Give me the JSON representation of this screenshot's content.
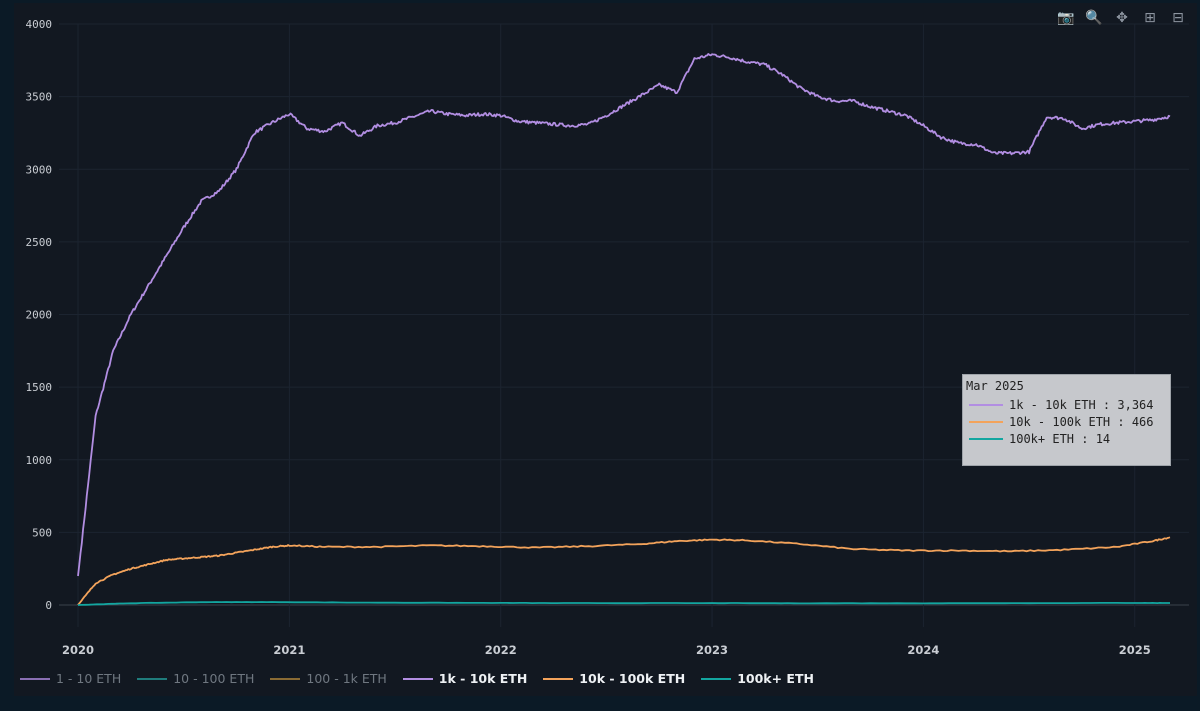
{
  "toolbar": {
    "icons": [
      "camera-icon",
      "zoom-icon",
      "pan-icon",
      "zoom-in-icon",
      "zoom-out-icon"
    ],
    "glyphs": [
      "📷",
      "🔍",
      "✥",
      "⊞",
      "⊟"
    ]
  },
  "hover": {
    "title": "Mar 2025",
    "rows": [
      {
        "text": "1k - 10k ETH : 3,364",
        "color": "#b28ee2"
      },
      {
        "text": "10k - 100k ETH : 466",
        "color": "#f3a35b"
      },
      {
        "text": "100k+ ETH : 14",
        "color": "#13a6a0"
      }
    ]
  },
  "chart_data": {
    "type": "line",
    "ylim": [
      0,
      4000
    ],
    "xlim": [
      "2020-01",
      "2025-03"
    ],
    "y_ticks": [
      0,
      500,
      1000,
      1500,
      2000,
      2500,
      3000,
      3500,
      4000
    ],
    "x_ticks": [
      "2020",
      "2021",
      "2022",
      "2023",
      "2024",
      "2025"
    ],
    "legend": [
      {
        "name": "1 - 10 ETH",
        "color": "#8a6fb3",
        "visible": false
      },
      {
        "name": "10 - 100 ETH",
        "color": "#1f7c7c",
        "visible": false
      },
      {
        "name": "100 - 1k ETH",
        "color": "#8a6b34",
        "visible": false
      },
      {
        "name": "1k - 10k ETH",
        "color": "#b28ee2",
        "visible": true
      },
      {
        "name": "10k - 100k ETH",
        "color": "#f3a35b",
        "visible": true
      },
      {
        "name": "100k+ ETH",
        "color": "#13a6a0",
        "visible": true
      }
    ],
    "series": [
      {
        "name": "1k - 10k ETH",
        "color": "#b28ee2",
        "points": [
          [
            "2020-01",
            200
          ],
          [
            "2020-02",
            1300
          ],
          [
            "2020-03",
            1750
          ],
          [
            "2020-04",
            2000
          ],
          [
            "2020-05",
            2200
          ],
          [
            "2020-06",
            2400
          ],
          [
            "2020-07",
            2600
          ],
          [
            "2020-08",
            2780
          ],
          [
            "2020-09",
            2850
          ],
          [
            "2020-10",
            3000
          ],
          [
            "2020-11",
            3250
          ],
          [
            "2020-12",
            3320
          ],
          [
            "2021-01",
            3380
          ],
          [
            "2021-02",
            3280
          ],
          [
            "2021-03",
            3260
          ],
          [
            "2021-04",
            3320
          ],
          [
            "2021-05",
            3230
          ],
          [
            "2021-06",
            3300
          ],
          [
            "2021-07",
            3320
          ],
          [
            "2021-08",
            3360
          ],
          [
            "2021-09",
            3400
          ],
          [
            "2021-10",
            3380
          ],
          [
            "2021-11",
            3370
          ],
          [
            "2021-12",
            3380
          ],
          [
            "2022-01",
            3370
          ],
          [
            "2022-02",
            3330
          ],
          [
            "2022-03",
            3320
          ],
          [
            "2022-04",
            3310
          ],
          [
            "2022-05",
            3300
          ],
          [
            "2022-06",
            3310
          ],
          [
            "2022-07",
            3370
          ],
          [
            "2022-08",
            3440
          ],
          [
            "2022-09",
            3510
          ],
          [
            "2022-10",
            3580
          ],
          [
            "2022-11",
            3530
          ],
          [
            "2022-12",
            3760
          ],
          [
            "2023-01",
            3790
          ],
          [
            "2023-02",
            3770
          ],
          [
            "2023-03",
            3740
          ],
          [
            "2023-04",
            3720
          ],
          [
            "2023-05",
            3650
          ],
          [
            "2023-06",
            3560
          ],
          [
            "2023-07",
            3500
          ],
          [
            "2023-08",
            3470
          ],
          [
            "2023-09",
            3470
          ],
          [
            "2023-10",
            3430
          ],
          [
            "2023-11",
            3400
          ],
          [
            "2023-12",
            3370
          ],
          [
            "2024-01",
            3300
          ],
          [
            "2024-02",
            3220
          ],
          [
            "2024-03",
            3180
          ],
          [
            "2024-04",
            3170
          ],
          [
            "2024-05",
            3110
          ],
          [
            "2024-06",
            3110
          ],
          [
            "2024-07",
            3120
          ],
          [
            "2024-08",
            3360
          ],
          [
            "2024-09",
            3350
          ],
          [
            "2024-10",
            3280
          ],
          [
            "2024-11",
            3310
          ],
          [
            "2024-12",
            3320
          ],
          [
            "2025-01",
            3330
          ],
          [
            "2025-02",
            3340
          ],
          [
            "2025-03",
            3364
          ]
        ]
      },
      {
        "name": "10k - 100k ETH",
        "color": "#f3a35b",
        "points": [
          [
            "2020-01",
            0
          ],
          [
            "2020-02",
            150
          ],
          [
            "2020-03",
            210
          ],
          [
            "2020-04",
            250
          ],
          [
            "2020-05",
            280
          ],
          [
            "2020-06",
            310
          ],
          [
            "2020-07",
            320
          ],
          [
            "2020-08",
            330
          ],
          [
            "2020-09",
            340
          ],
          [
            "2020-10",
            360
          ],
          [
            "2020-11",
            380
          ],
          [
            "2020-12",
            400
          ],
          [
            "2021-01",
            410
          ],
          [
            "2021-03",
            400
          ],
          [
            "2021-06",
            400
          ],
          [
            "2021-09",
            410
          ],
          [
            "2021-12",
            405
          ],
          [
            "2022-03",
            395
          ],
          [
            "2022-06",
            405
          ],
          [
            "2022-09",
            420
          ],
          [
            "2022-11",
            440
          ],
          [
            "2023-01",
            450
          ],
          [
            "2023-03",
            445
          ],
          [
            "2023-06",
            420
          ],
          [
            "2023-09",
            385
          ],
          [
            "2023-12",
            375
          ],
          [
            "2024-03",
            375
          ],
          [
            "2024-06",
            370
          ],
          [
            "2024-09",
            380
          ],
          [
            "2024-12",
            400
          ],
          [
            "2025-02",
            440
          ],
          [
            "2025-03",
            466
          ]
        ]
      },
      {
        "name": "100k+ ETH",
        "color": "#13a6a0",
        "points": [
          [
            "2020-01",
            0
          ],
          [
            "2020-04",
            12
          ],
          [
            "2020-08",
            20
          ],
          [
            "2020-12",
            20
          ],
          [
            "2021-06",
            16
          ],
          [
            "2022-01",
            14
          ],
          [
            "2022-06",
            13
          ],
          [
            "2023-01",
            13
          ],
          [
            "2023-06",
            12
          ],
          [
            "2024-01",
            12
          ],
          [
            "2024-06",
            13
          ],
          [
            "2025-01",
            14
          ],
          [
            "2025-03",
            14
          ]
        ]
      }
    ]
  }
}
